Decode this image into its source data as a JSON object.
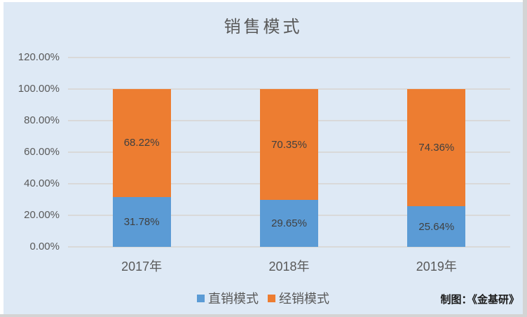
{
  "colors": {
    "chart_background": "#dee9f5",
    "page_background": "#ffffff",
    "edge_strip": "#d4d4d4",
    "gridline": "#d9d9d9",
    "axis_text": "#595959",
    "data_label_text": "#404040",
    "series_blue": "#5b9bd5",
    "series_orange": "#ed7d31"
  },
  "chart_data": {
    "type": "bar",
    "stacked": true,
    "title": "销售模式",
    "categories": [
      "2017年",
      "2018年",
      "2019年"
    ],
    "series": [
      {
        "name": "直销模式",
        "color": "#5b9bd5",
        "values": [
          31.78,
          29.65,
          25.64
        ],
        "labels": [
          "31.78%",
          "29.65%",
          "25.64%"
        ]
      },
      {
        "name": "经销模式",
        "color": "#ed7d31",
        "values": [
          68.22,
          70.35,
          74.36
        ],
        "labels": [
          "68.22%",
          "70.35%",
          "74.36%"
        ]
      }
    ],
    "y_axis": {
      "min": 0,
      "max": 120,
      "step": 20,
      "tick_labels": [
        "0.00%",
        "20.00%",
        "40.00%",
        "60.00%",
        "80.00%",
        "100.00%",
        "120.00%"
      ]
    },
    "grid": true,
    "legend_position": "bottom"
  },
  "attribution": "制图：《金基研》"
}
